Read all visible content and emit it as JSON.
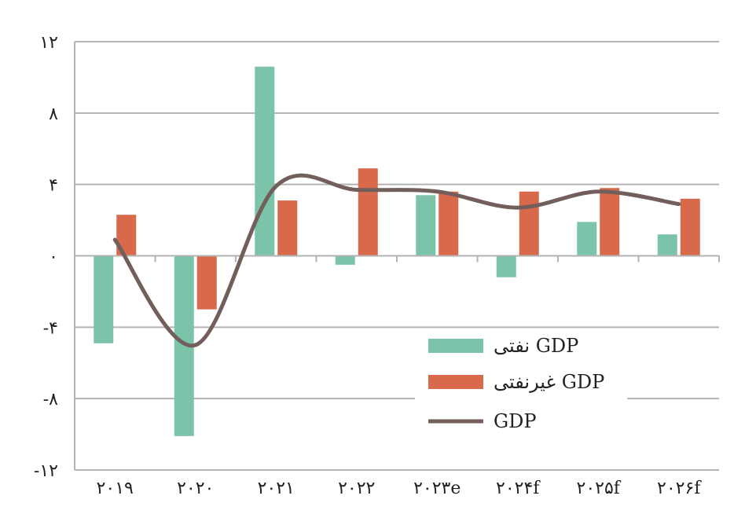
{
  "chart_data": {
    "type": "bar",
    "categories": [
      "۲۰۱۹",
      "۲۰۲۰",
      "۲۰۲۱",
      "۲۰۲۲",
      "۲۰۲۳e",
      "۲۰۲۴f",
      "۲۰۲۵f",
      "۲۰۲۶f"
    ],
    "series": [
      {
        "name": "نفتی GDP",
        "kind": "bar",
        "color": "#7CC4A9",
        "values": [
          -4.9,
          -10.1,
          10.6,
          -0.5,
          3.4,
          -1.2,
          1.9,
          1.2
        ]
      },
      {
        "name": "غیرنفتی GDP",
        "kind": "bar",
        "color": "#D9694B",
        "values": [
          2.3,
          -3.0,
          3.1,
          4.9,
          3.6,
          3.6,
          3.8,
          3.2
        ]
      },
      {
        "name": "GDP",
        "kind": "line",
        "color": "#725E5A",
        "values": [
          0.9,
          -5.0,
          3.9,
          3.7,
          3.6,
          2.7,
          3.6,
          2.9
        ]
      }
    ],
    "ylim": [
      -12,
      12
    ],
    "yticks": [
      {
        "value": 12,
        "label": "۱۲"
      },
      {
        "value": 8,
        "label": "۸"
      },
      {
        "value": 4,
        "label": "۴"
      },
      {
        "value": 0,
        "label": "۰"
      },
      {
        "value": -4,
        "label": "-۴"
      },
      {
        "value": -8,
        "label": "-۸"
      },
      {
        "value": -12,
        "label": "-۱۲"
      }
    ],
    "grid": true,
    "legend_position": "bottom-right",
    "title": "",
    "xlabel": "",
    "ylabel": ""
  }
}
